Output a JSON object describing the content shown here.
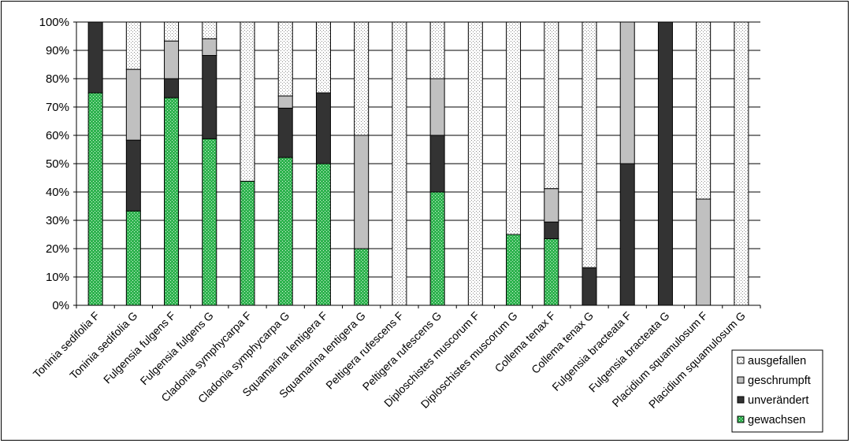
{
  "chart_data": {
    "type": "bar",
    "stacked": "percent",
    "categories": [
      "Toninia sedifolia F",
      "Toninia sedifolia G",
      "Fulgensia fulgens F",
      "Fulgensia fulgens G",
      "Cladonia symphycarpa F",
      "Cladonia symphycarpa G",
      "Squamarina lentigera F",
      "Squamarina lentigera G",
      "Peltigera rufescens F",
      "Peltigera rufescens G",
      "Diploschistes muscorum F",
      "Diploschistes muscorum G",
      "Collema tenax F",
      "Collema tenax G",
      "Fulgensia bracteata F",
      "Fulgensia bracteata G",
      "Placidium squamulosum F",
      "Placidium squamulosum G"
    ],
    "series": [
      {
        "name": "gewachsen",
        "color": "#2fb34f",
        "pattern": "dots-white",
        "values": [
          75,
          33.3,
          73.3,
          58.8,
          43.8,
          52.2,
          50,
          20,
          0,
          40,
          0,
          25,
          23.5,
          0,
          0,
          0,
          0,
          0
        ]
      },
      {
        "name": "unverändert",
        "color": "#333333",
        "pattern": "solid",
        "values": [
          25,
          25,
          6.7,
          29.4,
          0,
          17.4,
          25,
          0,
          0,
          20,
          0,
          0,
          5.9,
          13.3,
          50,
          100,
          0,
          0
        ]
      },
      {
        "name": "geschrumpft",
        "color": "#c0c0c0",
        "pattern": "solid",
        "values": [
          0,
          25,
          13.3,
          5.9,
          0,
          4.3,
          0,
          40,
          0,
          20,
          0,
          0,
          11.8,
          0,
          50,
          0,
          37.5,
          0
        ]
      },
      {
        "name": "ausgefallen",
        "color": "#ffffff",
        "pattern": "dots-gray",
        "values": [
          0,
          16.7,
          6.7,
          5.9,
          56.2,
          26.1,
          25,
          40,
          100,
          20,
          100,
          75,
          58.8,
          86.7,
          0,
          0,
          62.5,
          100
        ]
      }
    ],
    "ylim": [
      0,
      100
    ],
    "yticks": [
      "0%",
      "10%",
      "20%",
      "30%",
      "40%",
      "50%",
      "60%",
      "70%",
      "80%",
      "90%",
      "100%"
    ],
    "grid": "horizontal",
    "legend_position": "bottom-right",
    "legend_order": [
      "ausgefallen",
      "geschrumpft",
      "unverändert",
      "gewachsen"
    ],
    "title": "",
    "xlabel": "",
    "ylabel": ""
  }
}
